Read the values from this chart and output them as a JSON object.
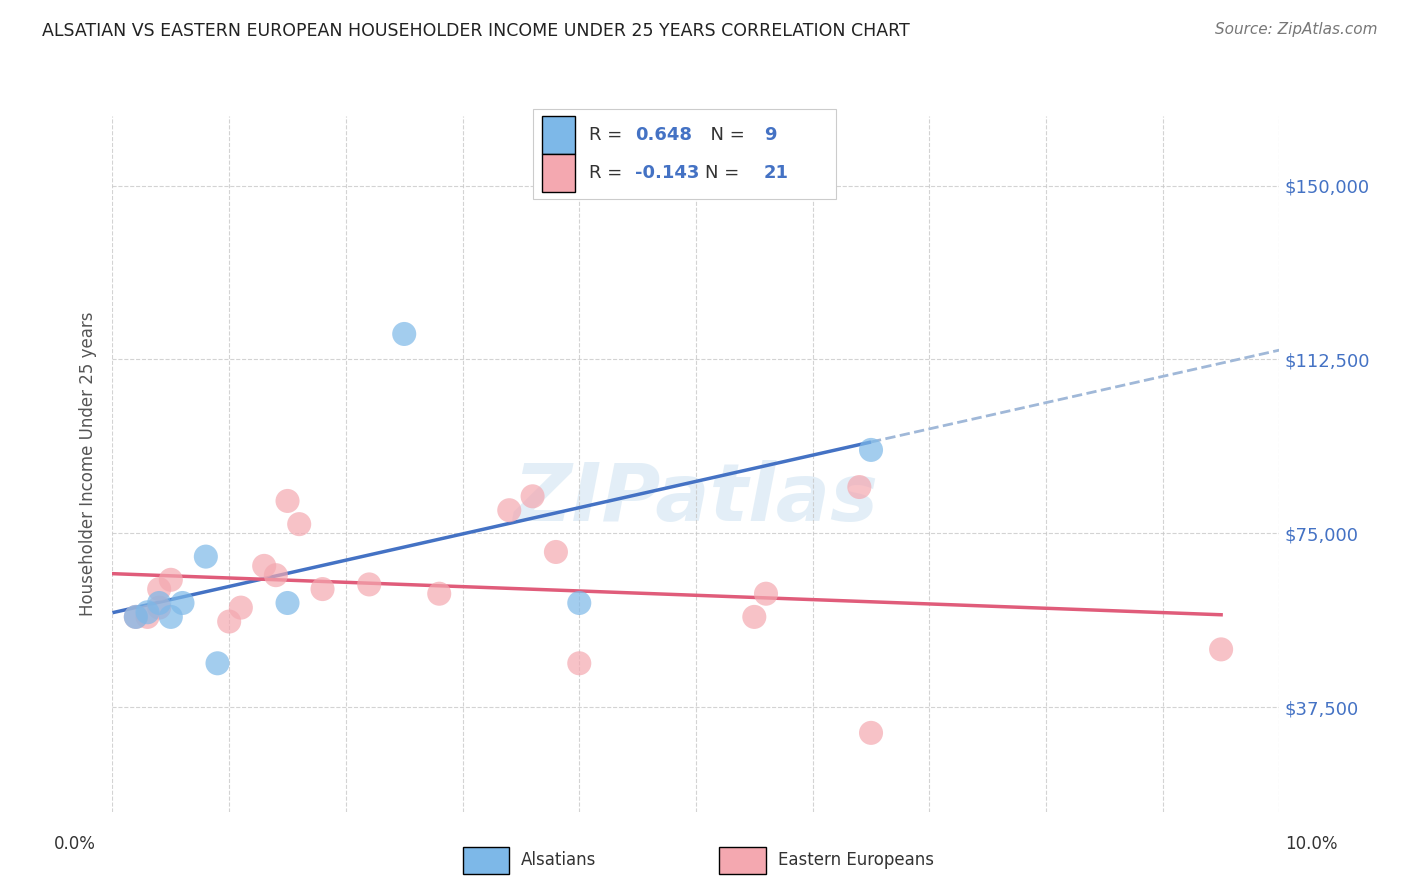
{
  "title": "ALSATIAN VS EASTERN EUROPEAN HOUSEHOLDER INCOME UNDER 25 YEARS CORRELATION CHART",
  "source": "Source: ZipAtlas.com",
  "ylabel": "Householder Income Under 25 years",
  "xlim": [
    0.0,
    0.1
  ],
  "ylim": [
    15000,
    165000
  ],
  "ytick_labels": [
    "$37,500",
    "$75,000",
    "$112,500",
    "$150,000"
  ],
  "ytick_values": [
    37500,
    75000,
    112500,
    150000
  ],
  "watermark": "ZIPatlas",
  "alsatian_color": "#7db8e8",
  "eastern_color": "#f4a8b0",
  "line_blue": "#4472c4",
  "line_pink": "#e05c7a",
  "line_dashed": "#a0b8d8",
  "alsatian_points": [
    [
      0.002,
      57000
    ],
    [
      0.003,
      58000
    ],
    [
      0.004,
      60000
    ],
    [
      0.005,
      57000
    ],
    [
      0.006,
      60000
    ],
    [
      0.008,
      70000
    ],
    [
      0.009,
      47000
    ],
    [
      0.015,
      60000
    ],
    [
      0.025,
      118000
    ],
    [
      0.04,
      60000
    ],
    [
      0.065,
      93000
    ]
  ],
  "eastern_points": [
    [
      0.002,
      57000
    ],
    [
      0.003,
      57000
    ],
    [
      0.004,
      63000
    ],
    [
      0.004,
      59000
    ],
    [
      0.005,
      65000
    ],
    [
      0.01,
      56000
    ],
    [
      0.011,
      59000
    ],
    [
      0.013,
      68000
    ],
    [
      0.014,
      66000
    ],
    [
      0.015,
      82000
    ],
    [
      0.016,
      77000
    ],
    [
      0.018,
      63000
    ],
    [
      0.022,
      64000
    ],
    [
      0.028,
      62000
    ],
    [
      0.034,
      80000
    ],
    [
      0.036,
      83000
    ],
    [
      0.038,
      71000
    ],
    [
      0.04,
      47000
    ],
    [
      0.055,
      57000
    ],
    [
      0.056,
      62000
    ],
    [
      0.064,
      85000
    ],
    [
      0.065,
      32000
    ],
    [
      0.095,
      50000
    ]
  ],
  "grid_color": "#c8c8c8",
  "background_color": "#ffffff",
  "title_color": "#222222",
  "ytick_color": "#4472c4"
}
